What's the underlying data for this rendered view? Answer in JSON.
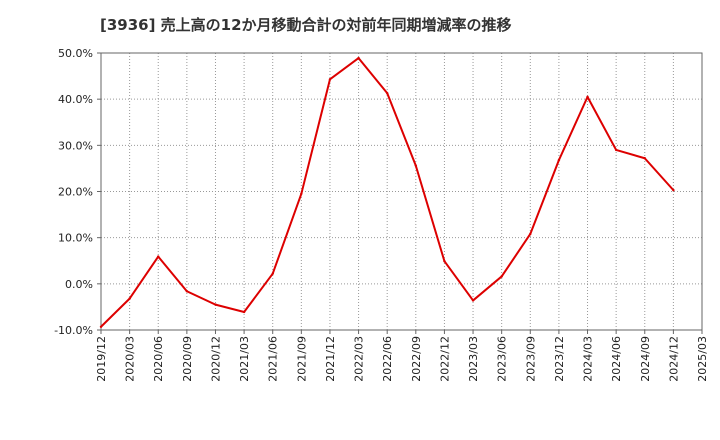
{
  "chart_data": {
    "type": "line",
    "title": "[3936]  売上高の12か月移動合計の対前年同期増減率の推移",
    "xlabel": "",
    "ylabel": "",
    "ylim": [
      -10,
      50
    ],
    "yticks": [
      -10,
      0,
      10,
      20,
      30,
      40,
      50
    ],
    "ytick_labels": [
      "-10.0%",
      "0.0%",
      "10.0%",
      "20.0%",
      "30.0%",
      "40.0%",
      "50.0%"
    ],
    "x_ticks": [
      "2019/12",
      "2020/03",
      "2020/06",
      "2020/09",
      "2020/12",
      "2021/03",
      "2021/06",
      "2021/09",
      "2021/12",
      "2022/03",
      "2022/06",
      "2022/09",
      "2022/12",
      "2023/03",
      "2023/06",
      "2023/09",
      "2023/12",
      "2024/03",
      "2024/06",
      "2024/09",
      "2024/12",
      "2025/03"
    ],
    "grid": true,
    "series": [
      {
        "name": "増減率",
        "color": "#dd0000",
        "x": [
          "2019/12",
          "2020/03",
          "2020/06",
          "2020/09",
          "2020/12",
          "2021/03",
          "2021/06",
          "2021/09",
          "2021/12",
          "2022/03",
          "2022/06",
          "2022/09",
          "2022/12",
          "2023/03",
          "2023/06",
          "2023/09",
          "2023/12",
          "2024/03",
          "2024/06",
          "2024/09",
          "2024/12"
        ],
        "values": [
          -9.3,
          -3.2,
          5.9,
          -1.6,
          -4.5,
          -6.1,
          2.2,
          19.5,
          44.3,
          48.9,
          41.3,
          25.6,
          4.9,
          -3.6,
          1.6,
          10.8,
          26.8,
          40.5,
          29.0,
          27.2,
          20.3
        ]
      }
    ]
  }
}
